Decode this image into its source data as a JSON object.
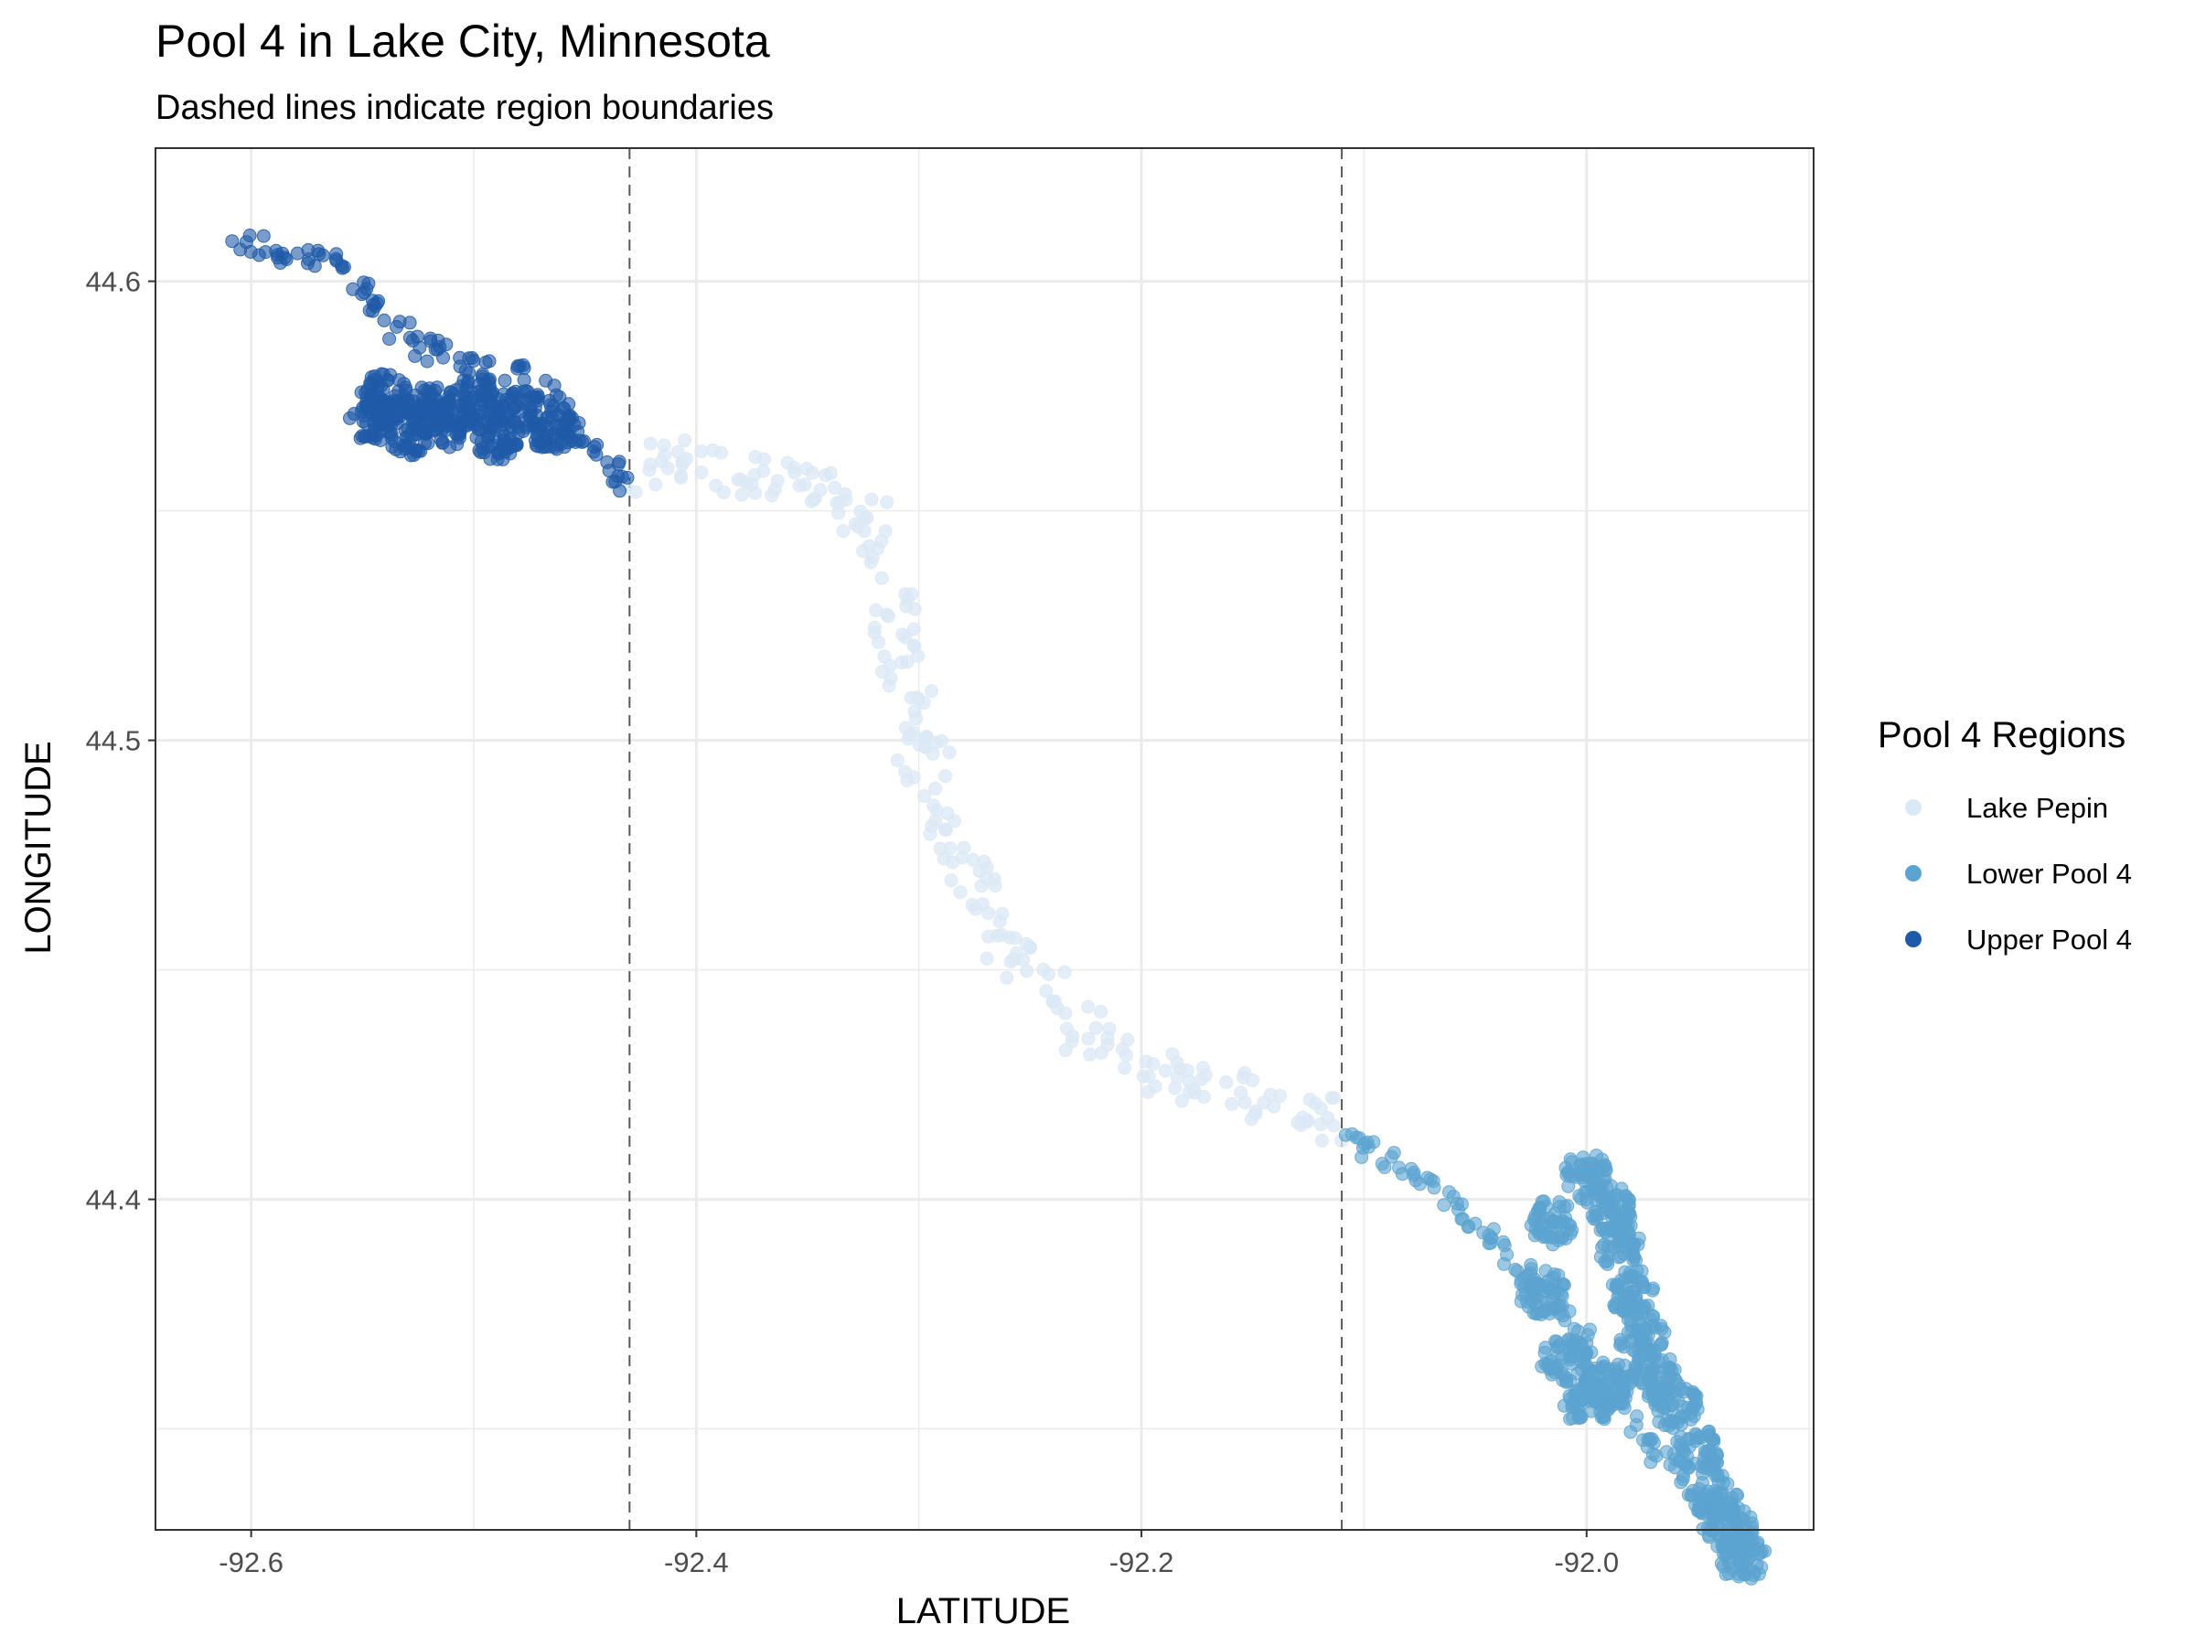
{
  "title": "Pool 4 in Lake City, Minnesota",
  "subtitle": "Dashed lines indicate region boundaries",
  "chart_data": {
    "type": "scatter",
    "title": "Pool 4 in Lake City, Minnesota",
    "subtitle": "Dashed lines indicate region boundaries",
    "xlabel": "LATITUDE",
    "ylabel": "LONGITUDE",
    "xlim": [
      -92.643,
      -91.898
    ],
    "ylim": [
      44.328,
      44.629
    ],
    "x_ticks": [
      -92.6,
      -92.4,
      -92.2,
      -92.0
    ],
    "x_tick_labels": [
      "-92.6",
      "-92.4",
      "-92.2",
      "-92.0"
    ],
    "y_ticks": [
      44.4,
      44.5,
      44.6
    ],
    "y_tick_labels": [
      "44.4",
      "44.5",
      "44.6"
    ],
    "grid": true,
    "vlines": [
      -92.43,
      -92.11
    ],
    "legend": {
      "title": "Pool 4 Regions",
      "position": "right",
      "entries": [
        {
          "label": "Lake Pepin",
          "color": "#dbe8f5"
        },
        {
          "label": "Lower Pool 4",
          "color": "#5ba3d0"
        },
        {
          "label": "Upper Pool 4",
          "color": "#1f5aa8"
        }
      ]
    },
    "series": [
      {
        "name": "Upper Pool 4",
        "color": "#1f5aa8",
        "path": [
          [
            -92.61,
            44.61
          ],
          [
            -92.585,
            44.606
          ],
          [
            -92.565,
            44.604
          ],
          [
            -92.555,
            44.602
          ],
          [
            -92.545,
            44.595
          ],
          [
            -92.535,
            44.59
          ],
          [
            -92.52,
            44.585
          ],
          [
            -92.5,
            44.582
          ],
          [
            -92.48,
            44.58
          ],
          [
            -92.465,
            44.575
          ],
          [
            -92.455,
            44.568
          ],
          [
            -92.445,
            44.563
          ],
          [
            -92.435,
            44.558
          ],
          [
            -92.43,
            44.556
          ]
        ],
        "blob": [
          [
            -92.54,
            44.575
          ],
          [
            -92.52,
            44.572
          ],
          [
            -92.5,
            44.575
          ],
          [
            -92.48,
            44.572
          ],
          [
            -92.465,
            44.568
          ],
          [
            -92.49,
            44.566
          ],
          [
            -92.51,
            44.569
          ],
          [
            -92.53,
            44.567
          ],
          [
            -92.545,
            44.57
          ]
        ]
      },
      {
        "name": "Lake Pepin",
        "color": "#dbe8f5",
        "path": [
          [
            -92.43,
            44.557
          ],
          [
            -92.41,
            44.562
          ],
          [
            -92.39,
            44.558
          ],
          [
            -92.37,
            44.556
          ],
          [
            -92.35,
            44.558
          ],
          [
            -92.33,
            44.554
          ],
          [
            -92.315,
            44.54
          ],
          [
            -92.308,
            44.52
          ],
          [
            -92.3,
            44.5
          ],
          [
            -92.29,
            44.485
          ],
          [
            -92.275,
            44.468
          ],
          [
            -92.262,
            44.456
          ],
          [
            -92.248,
            44.448
          ],
          [
            -92.235,
            44.441
          ],
          [
            -92.22,
            44.435
          ],
          [
            -92.205,
            44.43
          ],
          [
            -92.185,
            44.428
          ],
          [
            -92.165,
            44.425
          ],
          [
            -92.145,
            44.423
          ],
          [
            -92.125,
            44.42
          ],
          [
            -92.11,
            44.413
          ]
        ]
      },
      {
        "name": "Lower Pool 4",
        "color": "#5ba3d0",
        "path": [
          [
            -92.11,
            44.412
          ],
          [
            -92.095,
            44.41
          ],
          [
            -92.08,
            44.406
          ],
          [
            -92.06,
            44.4
          ],
          [
            -92.045,
            44.392
          ],
          [
            -92.03,
            44.385
          ],
          [
            -92.015,
            44.377
          ],
          [
            -92.0,
            44.368
          ],
          [
            -91.99,
            44.36
          ],
          [
            -91.98,
            44.352
          ],
          [
            -91.97,
            44.345
          ],
          [
            -91.955,
            44.338
          ],
          [
            -91.945,
            44.33
          ],
          [
            -91.935,
            44.323
          ]
        ],
        "blob": [
          [
            -92.0,
            44.405
          ],
          [
            -91.99,
            44.398
          ],
          [
            -91.985,
            44.39
          ],
          [
            -91.98,
            44.38
          ],
          [
            -91.975,
            44.37
          ],
          [
            -91.97,
            44.362
          ],
          [
            -91.96,
            44.355
          ],
          [
            -91.95,
            44.345
          ],
          [
            -91.942,
            44.335
          ],
          [
            -91.935,
            44.328
          ],
          [
            -91.93,
            44.322
          ],
          [
            -91.99,
            44.36
          ],
          [
            -92.0,
            44.355
          ],
          [
            -92.01,
            44.365
          ],
          [
            -92.02,
            44.38
          ],
          [
            -92.015,
            44.395
          ]
        ]
      }
    ]
  }
}
